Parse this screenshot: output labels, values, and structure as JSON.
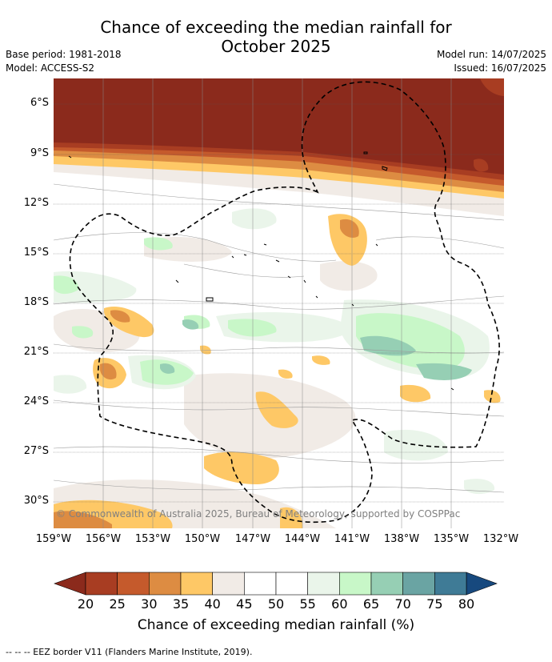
{
  "header": {
    "title_line1": "Chance of exceeding the median rainfall for",
    "title_line2": "October 2025",
    "base_period": "Base period: 1981-2018",
    "model": "Model: ACCESS-S2",
    "model_run": "Model run: 14/07/2025",
    "issued": "Issued: 16/07/2025"
  },
  "map": {
    "lat_labels": [
      "6°S",
      "9°S",
      "12°S",
      "15°S",
      "18°S",
      "21°S",
      "24°S",
      "27°S",
      "30°S"
    ],
    "lon_labels": [
      "159°W",
      "156°W",
      "153°W",
      "150°W",
      "147°W",
      "144°W",
      "141°W",
      "138°W",
      "135°W",
      "132°W"
    ],
    "credit": "© Commonwealth of Australia 2025, Bureau of Meteorology, supported by COSPPac",
    "colors": {
      "c15": "#8b2a1c",
      "c20": "#a83d22",
      "c25": "#c55a2c",
      "c30": "#dd8c42",
      "c35": "#fec866",
      "c40": "#f1ebe6",
      "c45": "#ffffff",
      "c55": "#eaf5ea",
      "c60": "#c8f7c8",
      "c65": "#96cfb4",
      "c70": "#6aa4a3",
      "c75": "#3f7b96",
      "c80": "#17497e"
    }
  },
  "colorbar": {
    "ticks": [
      "20",
      "25",
      "30",
      "35",
      "40",
      "45",
      "50",
      "55",
      "60",
      "65",
      "70",
      "75",
      "80"
    ],
    "label": "Chance of exceeding median rainfall (%)",
    "colors": [
      "#a83d22",
      "#c55a2c",
      "#dd8c42",
      "#fec866",
      "#f1ebe6",
      "#ffffff",
      "#ffffff",
      "#eaf5ea",
      "#c8f7c8",
      "#96cfb4",
      "#6aa4a3",
      "#3f7b96"
    ],
    "low_end_color": "#8b2a1c",
    "high_end_color": "#17497e"
  },
  "legend": {
    "eez": "--  --  -- EEZ border V11 (Flanders Marine Institute, 2019)."
  }
}
